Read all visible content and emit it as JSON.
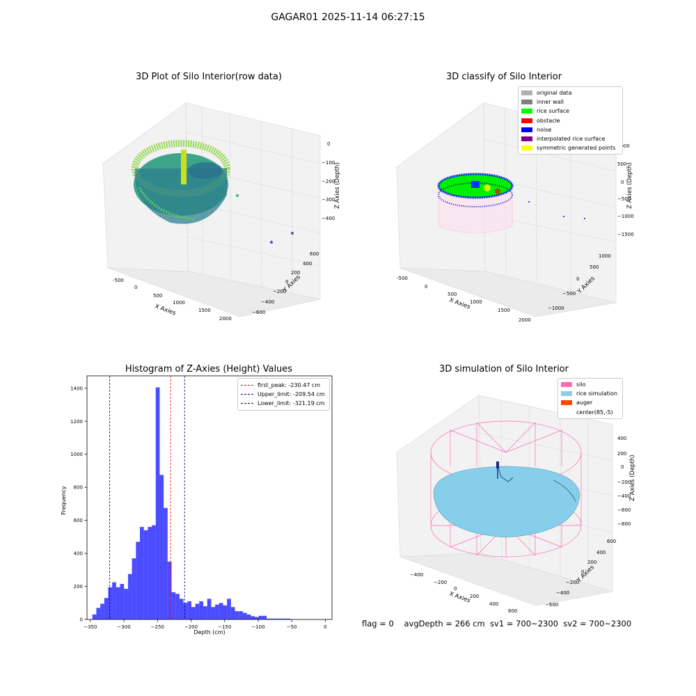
{
  "figure_title": "GAGAR01 2025-11-14 06:27:15",
  "panels": {
    "raw": {
      "title": "3D Plot of Silo Interior(row data)",
      "xlabel": "X Axies",
      "ylabel": "Y Axies",
      "zlabel": "Z Axies (Depth)",
      "xticks": [
        "-500",
        "0",
        "500",
        "1000",
        "1500",
        "2000"
      ],
      "yticks": [
        "600",
        "400",
        "200",
        "0",
        "−200",
        "−400",
        "−600"
      ],
      "zticks": [
        "0",
        "−100",
        "−200",
        "−300",
        "−400"
      ]
    },
    "classify": {
      "title": "3D classify of Silo Interior",
      "xlabel": "X Axies",
      "ylabel": "Y Axies",
      "zlabel": "Z Axies (Depth)",
      "xticks": [
        "-500",
        "0",
        "500",
        "1000",
        "1500",
        "2000"
      ],
      "yticks": [
        "1000",
        "500",
        "0",
        "−500",
        "−1000"
      ],
      "zticks": [
        "1000",
        "500",
        "0",
        "−500",
        "−1000",
        "−1500"
      ],
      "legend": [
        {
          "label": "original data",
          "color": "#b0b0b0"
        },
        {
          "label": "inner wall",
          "color": "#808080"
        },
        {
          "label": "rice surface",
          "color": "#00ff00"
        },
        {
          "label": "obstacle",
          "color": "#ff0000"
        },
        {
          "label": "noise",
          "color": "#0000ff"
        },
        {
          "label": "interpolated rice surface",
          "color": "#800080"
        },
        {
          "label": "symmetric generated points",
          "color": "#ffff00"
        }
      ]
    },
    "simulation": {
      "title": "3D simulation of Silo Interior",
      "xlabel": "X Axies",
      "ylabel": "Y Axies",
      "zlabel": "Z Axies (Depth)",
      "xticks": [
        "−400",
        "−200",
        "0",
        "200",
        "400",
        "600"
      ],
      "yticks": [
        "600",
        "400",
        "200",
        "0",
        "−200",
        "−400",
        "−600"
      ],
      "zticks": [
        "400",
        "200",
        "0",
        "−200",
        "−400",
        "−600",
        "−800"
      ],
      "legend": [
        {
          "label": "silo",
          "color": "#ff69b4"
        },
        {
          "label": "rice simulation",
          "color": "#87ceeb"
        },
        {
          "label": "auger",
          "color": "#ff4500"
        },
        {
          "label": "center(85,-5)",
          "color": ""
        }
      ]
    }
  },
  "chart_data": {
    "type": "bar",
    "title": "Histogram of Z-Axies (Height) Values",
    "xlabel": "Depth (cm)",
    "ylabel": "Frequency",
    "xlim": [
      -355,
      10
    ],
    "ylim": [
      0,
      1475
    ],
    "xticks": [
      -350,
      -300,
      -250,
      -200,
      -150,
      -100,
      -50,
      0
    ],
    "yticks": [
      0,
      200,
      400,
      600,
      800,
      1000,
      1200,
      1400
    ],
    "bin_start": -347,
    "bin_width": 5.9,
    "values": [
      30,
      70,
      95,
      130,
      195,
      225,
      195,
      215,
      185,
      275,
      370,
      470,
      560,
      540,
      560,
      570,
      1405,
      875,
      675,
      350,
      165,
      155,
      125,
      100,
      110,
      75,
      95,
      110,
      80,
      125,
      75,
      90,
      100,
      85,
      125,
      75,
      50,
      50,
      40,
      30,
      20,
      15,
      22,
      22,
      5,
      5,
      5,
      5,
      5,
      5
    ],
    "color": "#0000ff",
    "vlines": [
      {
        "name": "first_peak: -230.47 cm",
        "x": -230.47,
        "color": "#ff0000"
      },
      {
        "name": "Upper_limit: -209.54 cm",
        "x": -209.54,
        "color": "#00008b"
      },
      {
        "name": "Lower_limit: -321.19 cm",
        "x": -321.19,
        "color": "#00008b"
      }
    ],
    "legend_position": "upper right"
  },
  "footer": {
    "text": "flag = 0    avgDepth = 266 cm  sv1 = 700~2300  sv2 = 700~2300"
  }
}
